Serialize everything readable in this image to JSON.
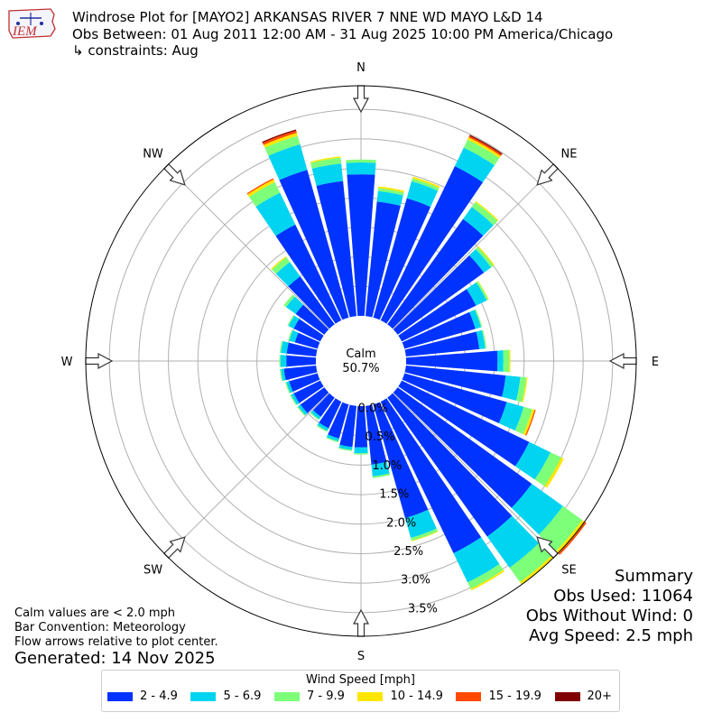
{
  "header": {
    "logo_text": "IEM",
    "title": "Windrose Plot for [MAYO2] ARKANSAS RIVER 7 NNE WD MAYO L&D 14",
    "obs_between": "Obs Between: 01 Aug 2011 12:00 AM - 31 Aug 2025 10:00 PM America/Chicago",
    "constraints": "↳ constraints: Aug"
  },
  "notes": {
    "calm_def": "Calm values are < 2.0 mph",
    "bar_convention": "Bar Convention: Meteorology",
    "flow_arrows": "Flow arrows relative to plot center.",
    "generated": "Generated: 14 Nov 2025"
  },
  "summary": {
    "heading": "Summary",
    "obs_used": "Obs Used: 11064",
    "obs_without_wind": "Obs Without Wind: 0",
    "avg_speed": "Avg Speed: 2.5 mph"
  },
  "chart_data": {
    "type": "windrose",
    "calm_label": "Calm",
    "calm_value": "50.7%",
    "calm_percent": 50.7,
    "radial_ticks": [
      "0.0%",
      "0.5%",
      "1.0%",
      "1.5%",
      "2.0%",
      "2.5%",
      "3.0%",
      "3.5%"
    ],
    "rlim": [
      0,
      3.9
    ],
    "grid": true,
    "compass_labels": [
      "N",
      "NE",
      "E",
      "SE",
      "S",
      "SW",
      "W",
      "NW"
    ],
    "direction_step_deg": 10,
    "legend_title": "Wind Speed [mph]",
    "legend_placement": "bottom-center",
    "speed_bins": [
      {
        "label": "2 - 4.9",
        "color": "#0033ff"
      },
      {
        "label": "5 - 6.9",
        "color": "#00d4f0"
      },
      {
        "label": "7 - 9.9",
        "color": "#7dff7a"
      },
      {
        "label": "10 - 14.9",
        "color": "#ffe600"
      },
      {
        "label": "15 - 19.9",
        "color": "#ff4a00"
      },
      {
        "label": "20+",
        "color": "#800000"
      }
    ],
    "directions_deg": [
      0,
      10,
      20,
      30,
      40,
      50,
      60,
      70,
      80,
      90,
      100,
      110,
      120,
      130,
      140,
      150,
      160,
      170,
      180,
      190,
      200,
      210,
      220,
      230,
      240,
      250,
      260,
      270,
      280,
      290,
      300,
      310,
      320,
      330,
      340,
      350
    ],
    "series": [
      {
        "name": "2 - 4.9",
        "values": [
          2.4,
          1.95,
          2.1,
          2.9,
          2.2,
          1.8,
          1.4,
          1.25,
          1.25,
          1.55,
          1.7,
          1.8,
          2.4,
          2.8,
          2.9,
          2.85,
          2.0,
          1.0,
          0.7,
          0.7,
          0.6,
          0.5,
          0.4,
          0.5,
          0.5,
          0.5,
          0.55,
          0.5,
          0.5,
          0.4,
          0.5,
          0.6,
          1.0,
          1.8,
          2.6,
          2.3
        ]
      },
      {
        "name": "5 - 6.9",
        "values": [
          0.2,
          0.18,
          0.3,
          0.35,
          0.25,
          0.15,
          0.2,
          0.1,
          0.1,
          0.1,
          0.25,
          0.3,
          0.4,
          0.65,
          0.65,
          0.55,
          0.35,
          0.2,
          0.1,
          0.05,
          0.05,
          0.05,
          0.05,
          0.05,
          0.05,
          0.05,
          0.05,
          0.1,
          0.1,
          0.1,
          0.1,
          0.2,
          0.3,
          0.6,
          0.45,
          0.3
        ]
      },
      {
        "name": "7 - 9.9",
        "values": [
          0.05,
          0.05,
          0.05,
          0.15,
          0.1,
          0.05,
          0.03,
          0.02,
          0.02,
          0.1,
          0.1,
          0.15,
          0.2,
          0.4,
          0.3,
          0.12,
          0.05,
          0.03,
          0.02,
          0.02,
          0.02,
          0.02,
          0.02,
          0.02,
          0.02,
          0.02,
          0.02,
          0.02,
          0.02,
          0.02,
          0.02,
          0.05,
          0.1,
          0.2,
          0.15,
          0.1
        ]
      },
      {
        "name": "10 - 14.9",
        "values": [
          0,
          0.03,
          0.03,
          0.04,
          0.02,
          0.02,
          0.01,
          0,
          0,
          0.02,
          0.02,
          0.04,
          0.05,
          0.06,
          0.05,
          0.03,
          0.01,
          0,
          0,
          0,
          0,
          0,
          0,
          0,
          0,
          0,
          0,
          0,
          0,
          0,
          0,
          0,
          0.02,
          0.05,
          0.05,
          0.02
        ]
      },
      {
        "name": "15 - 19.9",
        "values": [
          0,
          0,
          0,
          0.03,
          0,
          0,
          0,
          0,
          0,
          0,
          0,
          0.02,
          0,
          0.03,
          0,
          0,
          0,
          0,
          0,
          0,
          0,
          0,
          0,
          0,
          0,
          0,
          0,
          0,
          0,
          0,
          0,
          0,
          0,
          0.02,
          0.04,
          0
        ]
      },
      {
        "name": "20+",
        "values": [
          0,
          0,
          0,
          0.02,
          0,
          0,
          0,
          0,
          0,
          0,
          0,
          0,
          0,
          0,
          0,
          0,
          0,
          0,
          0,
          0,
          0,
          0,
          0,
          0,
          0,
          0,
          0,
          0,
          0,
          0,
          0,
          0,
          0,
          0,
          0.02,
          0
        ]
      }
    ]
  }
}
